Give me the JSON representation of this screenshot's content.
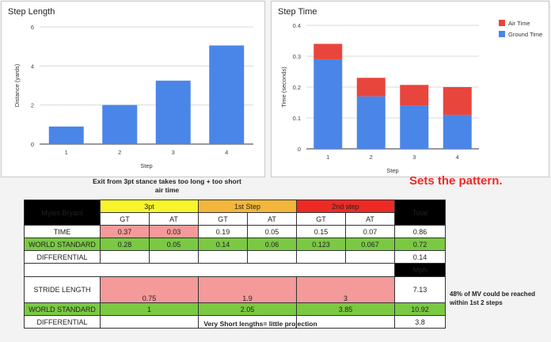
{
  "chart_data": [
    {
      "type": "bar",
      "title": "Step Length",
      "xlabel": "Step",
      "ylabel": "Distance (yards)",
      "categories": [
        "1",
        "2",
        "3",
        "4"
      ],
      "values": [
        0.9,
        2.0,
        3.25,
        5.05
      ],
      "ylim": [
        0,
        6
      ],
      "yticks": [
        "0",
        "2",
        "4",
        "6"
      ],
      "color": "#4a86e8",
      "grid": true
    },
    {
      "type": "bar",
      "stacked": true,
      "title": "Step Time",
      "xlabel": "Step",
      "ylabel": "Time (seconds)",
      "categories": [
        "1",
        "2",
        "3",
        "4"
      ],
      "series": [
        {
          "name": "Ground Time",
          "color": "#4a86e8",
          "values": [
            0.29,
            0.17,
            0.14,
            0.11
          ]
        },
        {
          "name": "Air Time",
          "color": "#e8453c",
          "values": [
            0.05,
            0.06,
            0.067,
            0.09
          ]
        }
      ],
      "ylim": [
        0,
        0.4
      ],
      "yticks": [
        "0",
        "0.1",
        "0.2",
        "0.3",
        "0.4"
      ],
      "legend": "top-right",
      "grid": true
    }
  ],
  "notes": {
    "top": "Exit from 3pt stance takes too long + too short air time",
    "pattern": "Sets the pattern.",
    "bottom": "Very Short lengths= little projection",
    "side": "48% of MV could be reached within 1st 2 steps"
  },
  "table": {
    "player": "Myles Bryant",
    "groups": [
      "3pt",
      "1st Step",
      "2nd step"
    ],
    "total": "Total",
    "subheads": [
      "GT",
      "AT",
      "GT",
      "AT",
      "GT",
      "AT"
    ],
    "rows": [
      {
        "label": "TIME",
        "values": [
          "0.37",
          "0.03",
          "0.19",
          "0.05",
          "0.15",
          "0.07"
        ],
        "total": "0.86"
      },
      {
        "label": "WORLD STANDARD",
        "values": [
          "0.28",
          "0.05",
          "0.14",
          "0.06",
          "0.123",
          "0.067"
        ],
        "total": "0.72"
      },
      {
        "label": "DIFFERENTIAL",
        "total": "0.14"
      }
    ],
    "mph": "Mph",
    "stride": {
      "label": "STRIDE LENGTH",
      "values": [
        "0.75",
        "1.9",
        "3"
      ],
      "total": "7.13"
    },
    "stride_ws": {
      "label": "WORLD STANDARD",
      "values": [
        "1",
        "2.05",
        "3.85"
      ],
      "total": "10.92"
    },
    "stride_diff": {
      "label": "DIFFERENTIAL",
      "total": "3.8"
    }
  }
}
